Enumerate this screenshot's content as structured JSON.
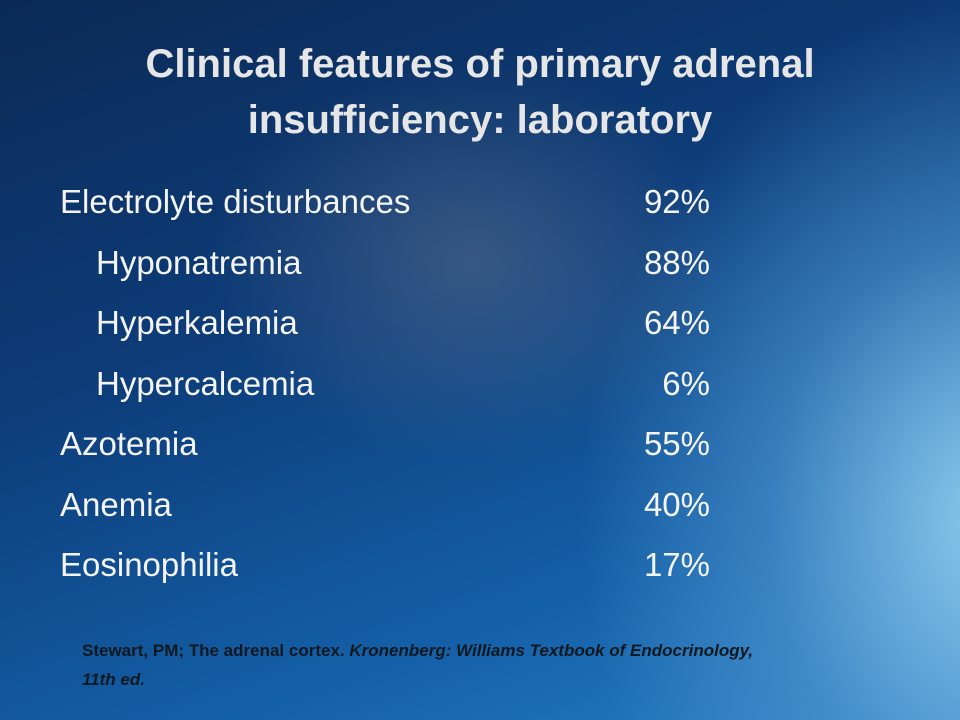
{
  "header": {
    "title": "Clinical features of primary adrenal insufficiency: laboratory"
  },
  "items": [
    {
      "label": "Electrolyte disturbances",
      "value": "92%",
      "subitems": [
        {
          "label": "Hyponatremia",
          "value": "88%"
        },
        {
          "label": "Hyperkalemia",
          "value": "64%"
        },
        {
          "label": "Hypercalcemia",
          "value": "6%"
        }
      ]
    },
    {
      "label": "Azotemia",
      "value": "55%"
    },
    {
      "label": "Anemia",
      "value": "40%"
    },
    {
      "label": "Eosinophilia",
      "value": "17%"
    }
  ],
  "citation": {
    "source": "Stewart, PM; The adrenal cortex.",
    "book": "Kronenberg: Williams Textbook of Endocrinology, 11th ed."
  }
}
